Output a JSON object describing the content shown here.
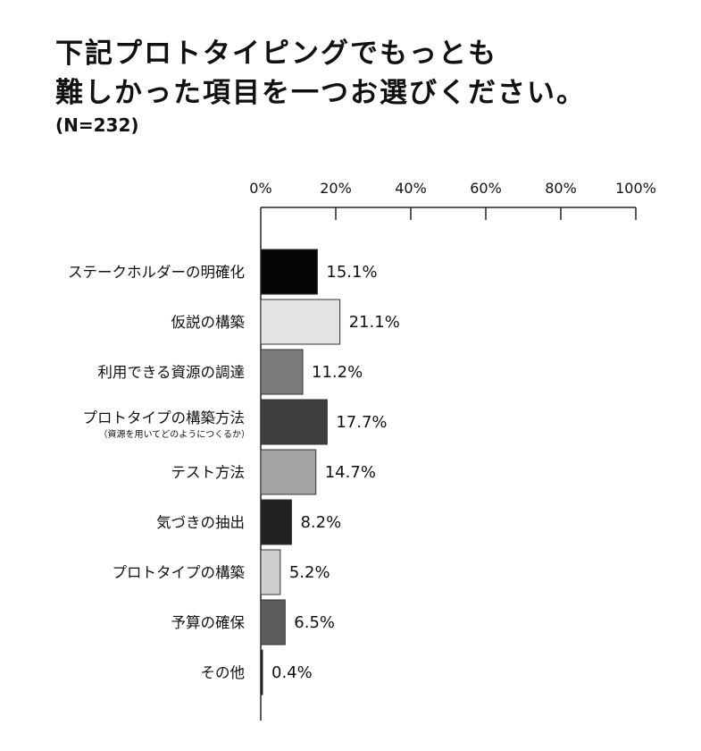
{
  "header": {
    "title_line1": "下記プロトタイピングでもっとも",
    "title_line2": "難しかった項目を一つお選びください。",
    "subtitle": "(N=232)"
  },
  "chart_data": {
    "type": "bar",
    "orientation": "horizontal",
    "xlim": [
      0,
      100
    ],
    "x_ticks": [
      "0%",
      "20%",
      "40%",
      "60%",
      "80%",
      "100%"
    ],
    "categories": [
      "ステークホルダーの明確化",
      "仮説の構築",
      "利用できる資源の調達",
      "プロトタイプの構築方法",
      "テスト方法",
      "気づきの抽出",
      "プロトタイプの構築",
      "予算の確保",
      "その他"
    ],
    "category_notes": [
      "",
      "",
      "",
      "（資源を用いてどのようにつくるか）",
      "",
      "",
      "",
      "",
      ""
    ],
    "values": [
      15.1,
      21.1,
      11.2,
      17.7,
      14.7,
      8.2,
      5.2,
      6.5,
      0.4
    ],
    "value_labels": [
      "15.1%",
      "21.1%",
      "11.2%",
      "17.7%",
      "14.7%",
      "8.2%",
      "5.2%",
      "6.5%",
      "0.4%"
    ],
    "bar_colors": [
      "#050505",
      "#e3e3e3",
      "#7c7c7c",
      "#3e3e3e",
      "#a3a3a3",
      "#222222",
      "#cfcfcf",
      "#5c5c5c",
      "#111111"
    ],
    "legend": "none",
    "grid": false
  }
}
